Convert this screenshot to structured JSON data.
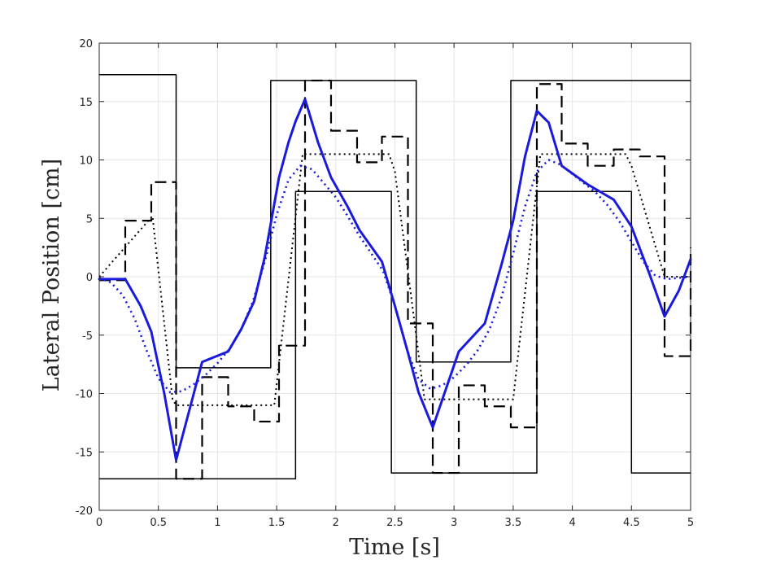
{
  "chart_data": {
    "type": "line",
    "title": "",
    "xlabel": "Time [s]",
    "ylabel": "Lateral Position [cm]",
    "xlim": [
      0,
      5
    ],
    "ylim": [
      -20,
      20
    ],
    "xticks": [
      0,
      0.5,
      1,
      1.5,
      2,
      2.5,
      3,
      3.5,
      4,
      4.5,
      5
    ],
    "xtick_labels": [
      "0",
      "0.5",
      "1",
      "1.5",
      "2",
      "2.5",
      "3",
      "3.5",
      "4",
      "4.5",
      "5"
    ],
    "yticks": [
      -20,
      -15,
      -10,
      -5,
      0,
      5,
      10,
      15,
      20
    ],
    "ytick_labels": [
      "-20",
      "-15",
      "-10",
      "-5",
      "0",
      "5",
      "10",
      "15",
      "20"
    ],
    "grid": true,
    "legend": "none",
    "series": [
      {
        "style": "solid-black-thin",
        "color": "#000000",
        "points": [
          [
            0,
            17.3
          ],
          [
            0.65,
            17.3
          ],
          [
            0.65,
            -7.8
          ],
          [
            1.45,
            -7.8
          ],
          [
            1.45,
            16.8
          ],
          [
            2.68,
            16.8
          ],
          [
            2.68,
            -7.3
          ],
          [
            3.48,
            -7.3
          ],
          [
            3.48,
            16.8
          ],
          [
            5.0,
            16.8
          ]
        ]
      },
      {
        "style": "solid-black-thin",
        "color": "#000000",
        "points": [
          [
            0,
            -17.3
          ],
          [
            1.66,
            -17.3
          ],
          [
            1.66,
            7.3
          ],
          [
            2.47,
            7.3
          ],
          [
            2.47,
            -16.8
          ],
          [
            3.7,
            -16.8
          ],
          [
            3.7,
            7.3
          ],
          [
            4.5,
            7.3
          ],
          [
            4.5,
            -16.8
          ],
          [
            5.0,
            -16.8
          ]
        ]
      },
      {
        "style": "dashed-black",
        "color": "#000000",
        "points": [
          [
            0,
            -0.3
          ],
          [
            0.22,
            -0.3
          ],
          [
            0.22,
            4.8
          ],
          [
            0.44,
            4.8
          ],
          [
            0.44,
            8.1
          ],
          [
            0.65,
            8.1
          ],
          [
            0.65,
            -17.3
          ],
          [
            0.87,
            -17.3
          ],
          [
            0.87,
            -8.6
          ],
          [
            1.09,
            -8.6
          ],
          [
            1.09,
            -11.1
          ],
          [
            1.31,
            -11.1
          ],
          [
            1.31,
            -12.4
          ],
          [
            1.52,
            -12.4
          ],
          [
            1.52,
            -5.9
          ],
          [
            1.74,
            -5.9
          ],
          [
            1.74,
            16.8
          ],
          [
            1.96,
            16.8
          ],
          [
            1.96,
            12.5
          ],
          [
            2.18,
            12.5
          ],
          [
            2.18,
            9.8
          ],
          [
            2.39,
            9.8
          ],
          [
            2.39,
            12.0
          ],
          [
            2.61,
            12.0
          ],
          [
            2.61,
            -4.0
          ],
          [
            2.82,
            -4.0
          ],
          [
            2.82,
            -16.8
          ],
          [
            3.04,
            -16.8
          ],
          [
            3.04,
            -9.3
          ],
          [
            3.26,
            -9.3
          ],
          [
            3.26,
            -11.1
          ],
          [
            3.48,
            -11.1
          ],
          [
            3.48,
            -12.9
          ],
          [
            3.7,
            -12.9
          ],
          [
            3.7,
            16.5
          ],
          [
            3.91,
            16.5
          ],
          [
            3.91,
            11.4
          ],
          [
            4.13,
            11.4
          ],
          [
            4.13,
            9.5
          ],
          [
            4.35,
            9.5
          ],
          [
            4.35,
            10.9
          ],
          [
            4.57,
            10.9
          ],
          [
            4.57,
            10.3
          ],
          [
            4.78,
            10.3
          ],
          [
            4.78,
            -6.8
          ],
          [
            5.0,
            -6.8
          ],
          [
            5.0,
            2.5
          ]
        ]
      },
      {
        "style": "dotted-black",
        "color": "#000000",
        "points": [
          [
            0,
            0
          ],
          [
            0.45,
            5.2
          ],
          [
            0.62,
            -10.5
          ],
          [
            0.65,
            -11.0
          ],
          [
            1.48,
            -11.0
          ],
          [
            1.72,
            10.5
          ],
          [
            1.75,
            10.5
          ],
          [
            2.45,
            10.5
          ],
          [
            2.5,
            9.0
          ],
          [
            2.75,
            -10.5
          ],
          [
            3.5,
            -10.5
          ],
          [
            3.73,
            10.5
          ],
          [
            4.45,
            10.5
          ],
          [
            4.5,
            9.5
          ],
          [
            4.78,
            0
          ],
          [
            5.0,
            0
          ]
        ]
      },
      {
        "style": "dotted-blue",
        "color": "#1a1adc",
        "points": [
          [
            0,
            -0.1
          ],
          [
            0.1,
            -0.5
          ],
          [
            0.2,
            -1.6
          ],
          [
            0.3,
            -3.6
          ],
          [
            0.4,
            -6.3
          ],
          [
            0.5,
            -8.7
          ],
          [
            0.6,
            -9.9
          ],
          [
            0.7,
            -9.8
          ],
          [
            0.8,
            -9.2
          ],
          [
            0.9,
            -8.4
          ],
          [
            1.0,
            -7.4
          ],
          [
            1.1,
            -6.2
          ],
          [
            1.2,
            -4.5
          ],
          [
            1.3,
            -2.1
          ],
          [
            1.4,
            1.3
          ],
          [
            1.5,
            5.3
          ],
          [
            1.6,
            8.3
          ],
          [
            1.7,
            9.5
          ],
          [
            1.8,
            9.2
          ],
          [
            1.9,
            8.0
          ],
          [
            2.0,
            6.8
          ],
          [
            2.1,
            5.2
          ],
          [
            2.2,
            3.5
          ],
          [
            2.3,
            2.0
          ],
          [
            2.4,
            0.5
          ],
          [
            2.5,
            -2.5
          ],
          [
            2.6,
            -6.2
          ],
          [
            2.7,
            -8.8
          ],
          [
            2.8,
            -9.6
          ],
          [
            2.9,
            -9.3
          ],
          [
            3.0,
            -8.6
          ],
          [
            3.1,
            -7.6
          ],
          [
            3.2,
            -6.3
          ],
          [
            3.3,
            -4.5
          ],
          [
            3.4,
            -1.8
          ],
          [
            3.5,
            2.0
          ],
          [
            3.6,
            6.0
          ],
          [
            3.7,
            9.0
          ],
          [
            3.8,
            10.0
          ],
          [
            3.9,
            9.6
          ],
          [
            4.0,
            8.8
          ],
          [
            4.1,
            8.0
          ],
          [
            4.2,
            7.2
          ],
          [
            4.3,
            6.1
          ],
          [
            4.4,
            4.7
          ],
          [
            4.5,
            3.0
          ],
          [
            4.6,
            1.3
          ],
          [
            4.7,
            0.1
          ],
          [
            4.8,
            -0.2
          ],
          [
            4.9,
            -0.1
          ],
          [
            5.0,
            0.0
          ]
        ]
      },
      {
        "style": "solid-blue-thick",
        "color": "#1a1adc",
        "points": [
          [
            0,
            -0.2
          ],
          [
            0.22,
            -0.2
          ],
          [
            0.35,
            -2.5
          ],
          [
            0.44,
            -4.7
          ],
          [
            0.55,
            -10.0
          ],
          [
            0.65,
            -15.7
          ],
          [
            0.87,
            -7.3
          ],
          [
            1.09,
            -6.4
          ],
          [
            1.2,
            -4.5
          ],
          [
            1.31,
            -2.1
          ],
          [
            1.4,
            1.7
          ],
          [
            1.52,
            8.5
          ],
          [
            1.6,
            11.5
          ],
          [
            1.66,
            13.3
          ],
          [
            1.74,
            15.2
          ],
          [
            1.85,
            11.5
          ],
          [
            1.96,
            8.5
          ],
          [
            2.1,
            6.0
          ],
          [
            2.2,
            4.0
          ],
          [
            2.39,
            1.3
          ],
          [
            2.5,
            -2.5
          ],
          [
            2.61,
            -6.5
          ],
          [
            2.7,
            -9.9
          ],
          [
            2.82,
            -12.9
          ],
          [
            3.04,
            -6.4
          ],
          [
            3.26,
            -4.0
          ],
          [
            3.4,
            1.0
          ],
          [
            3.5,
            4.8
          ],
          [
            3.6,
            10.3
          ],
          [
            3.7,
            14.2
          ],
          [
            3.8,
            13.2
          ],
          [
            3.91,
            9.5
          ],
          [
            4.13,
            7.9
          ],
          [
            4.35,
            6.6
          ],
          [
            4.5,
            4.3
          ],
          [
            4.65,
            0.3
          ],
          [
            4.78,
            -3.4
          ],
          [
            4.9,
            -1.2
          ],
          [
            5.0,
            1.5
          ]
        ]
      }
    ]
  }
}
